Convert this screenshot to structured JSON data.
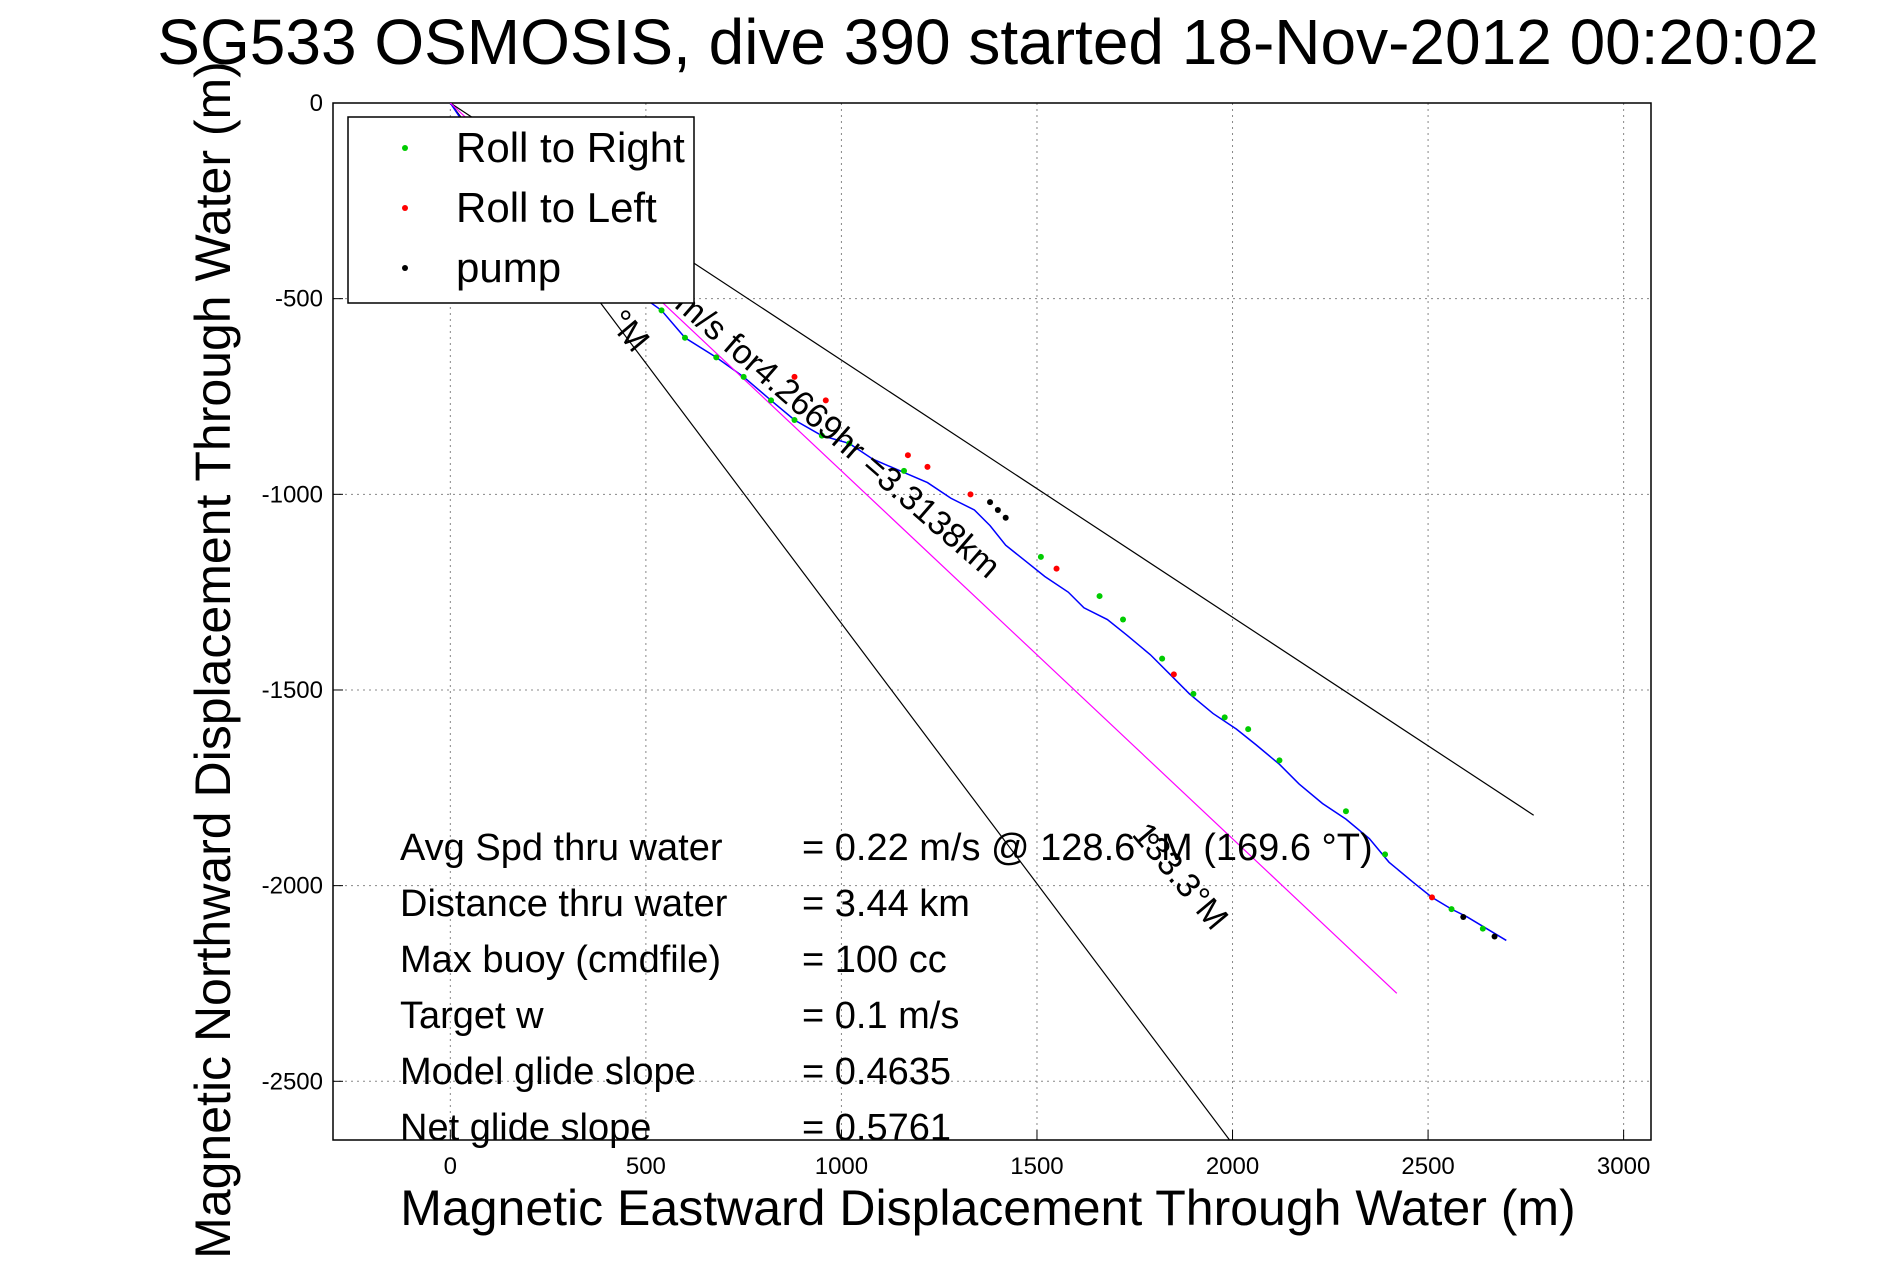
{
  "chart_data": {
    "type": "line",
    "title": "SG533 OSMOSIS, dive 390 started 18-Nov-2012 00:20:02",
    "xlabel": "Magnetic Eastward Displacement Through Water (m)",
    "ylabel": "Magnetic Northward Displacement Through Water (m)",
    "xlim": [
      -300,
      3070
    ],
    "ylim": [
      -2650,
      0
    ],
    "xticks": [
      "0",
      "500",
      "1000",
      "1500",
      "2000",
      "2500",
      "3000"
    ],
    "xtick_values": [
      0,
      500,
      1000,
      1500,
      2000,
      2500,
      3000
    ],
    "yticks": [
      "0",
      "-500",
      "-1000",
      "-1500",
      "-2000",
      "-2500"
    ],
    "ytick_values": [
      0,
      -500,
      -1000,
      -1500,
      -2000,
      -2500
    ],
    "grid": true,
    "legend": {
      "placement": "top-left",
      "entries": [
        {
          "label": "Roll to Right",
          "color": "#00cc00"
        },
        {
          "label": "Roll to Left",
          "color": "#ff0000"
        },
        {
          "label": "pump",
          "color": "#000000"
        }
      ]
    },
    "series": [
      {
        "name": "track",
        "color": "#0000ff",
        "x": [
          0,
          60,
          130,
          200,
          270,
          340,
          400,
          470,
          540,
          600,
          680,
          750,
          820,
          880,
          950,
          1020,
          1080,
          1150,
          1220,
          1280,
          1340,
          1380,
          1420,
          1470,
          1520,
          1580,
          1620,
          1680,
          1730,
          1790,
          1840,
          1890,
          1950,
          2010,
          2060,
          2120,
          2170,
          2230,
          2290,
          2350,
          2400,
          2460,
          2510,
          2560,
          2600,
          2650,
          2700
        ],
        "y": [
          0,
          -90,
          -150,
          -230,
          -300,
          -360,
          -420,
          -480,
          -530,
          -600,
          -650,
          -700,
          -760,
          -810,
          -850,
          -870,
          -910,
          -940,
          -970,
          -1010,
          -1040,
          -1080,
          -1130,
          -1170,
          -1210,
          -1250,
          -1290,
          -1320,
          -1360,
          -1410,
          -1460,
          -1510,
          -1560,
          -1600,
          -1640,
          -1690,
          -1740,
          -1790,
          -1830,
          -1880,
          -1940,
          -1990,
          -2030,
          -2060,
          -2080,
          -2110,
          -2140
        ]
      },
      {
        "name": "Roll to Right",
        "color": "#00cc00",
        "x": [
          60,
          130,
          200,
          270,
          340,
          400,
          470,
          540,
          600,
          680,
          750,
          820,
          880,
          950,
          1020,
          1160,
          1510,
          1660,
          1720,
          1820,
          1900,
          1980,
          2040,
          2120,
          2290,
          2390,
          2560,
          2640
        ],
        "y": [
          -90,
          -150,
          -230,
          -300,
          -360,
          -420,
          -480,
          -530,
          -600,
          -650,
          -700,
          -760,
          -810,
          -850,
          -870,
          -940,
          -1160,
          -1260,
          -1320,
          -1420,
          -1510,
          -1570,
          -1600,
          -1680,
          -1810,
          -1920,
          -2060,
          -2110
        ]
      },
      {
        "name": "Roll to Left",
        "color": "#ff0000",
        "x": [
          880,
          960,
          1170,
          1220,
          1330,
          1550,
          1850,
          2510
        ],
        "y": [
          -700,
          -760,
          -900,
          -930,
          -1000,
          -1190,
          -1460,
          -2030
        ]
      },
      {
        "name": "pump",
        "color": "#000000",
        "x": [
          1380,
          1400,
          1420,
          2590,
          2670
        ],
        "y": [
          -1020,
          -1040,
          -1060,
          -2080,
          -2130
        ]
      },
      {
        "name": "direct course",
        "color": "#ff00ff",
        "x": [
          0,
          2420
        ],
        "y": [
          0,
          -2275
        ]
      }
    ],
    "reference_lines": [
      {
        "name": "upper bound",
        "color": "#000000",
        "x": [
          0,
          2770
        ],
        "y": [
          0,
          -1820
        ]
      },
      {
        "name": "lower bound",
        "color": "#000000",
        "x": [
          0,
          2000
        ],
        "y": [
          0,
          -2660
        ]
      }
    ],
    "annotations": {
      "heading_rotated_1": "°M",
      "speed_rotated": "m/s for4.2669hr =3.3138km",
      "heading_rotated_2": "133.3°M"
    },
    "stats": [
      {
        "label": "Avg Spd thru water",
        "value": "=  0.22 m/s @ 128.6 °M (169.6 °T)"
      },
      {
        "label": "Distance thru water",
        "value": "=  3.44 km"
      },
      {
        "label": "Max buoy (cmdfile)",
        "value": "= 100 cc"
      },
      {
        "label": "Target w",
        "value": "= 0.1 m/s"
      },
      {
        "label": "Model glide slope",
        "value": "= 0.4635"
      },
      {
        "label": "Net glide slope",
        "value": "= 0.5761"
      }
    ]
  }
}
